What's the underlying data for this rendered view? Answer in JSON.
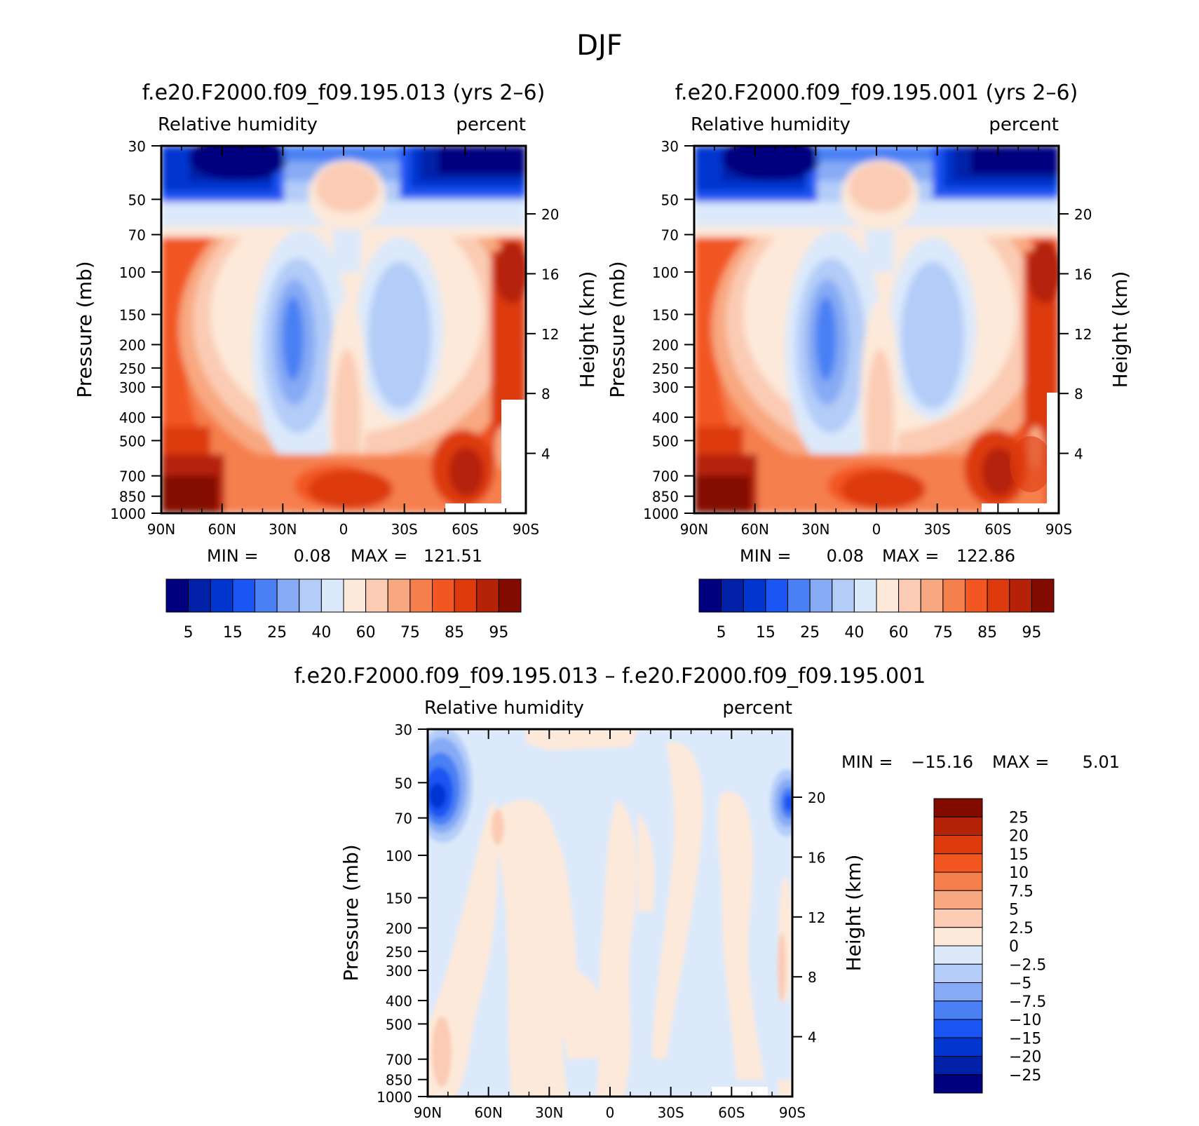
{
  "figure_title": "DJF",
  "stat_labels": {
    "min": "MIN =",
    "max": "MAX ="
  },
  "panels": [
    {
      "title": "f.e20.F2000.f09_f09.195.013 (yrs 2–6)",
      "var_label": "Relative humidity",
      "units_label": "percent",
      "min_value": "0.08",
      "max_value": "121.51"
    },
    {
      "title": "f.e20.F2000.f09_f09.195.001 (yrs 2–6)",
      "var_label": "Relative humidity",
      "units_label": "percent",
      "min_value": "0.08",
      "max_value": "122.86"
    },
    {
      "title": "f.e20.F2000.f09_f09.195.013 – f.e20.F2000.f09_f09.195.001",
      "var_label": "Relative humidity",
      "units_label": "percent",
      "min_value": "−15.16",
      "max_value": "5.01"
    }
  ],
  "axis_labels": {
    "left": "Pressure (mb)",
    "right": "Height (km)"
  },
  "pressure_ticks": [
    "30",
    "50",
    "70",
    "100",
    "150",
    "200",
    "250",
    "300",
    "400",
    "500",
    "700",
    "850",
    "1000"
  ],
  "height_ticks": [
    "20",
    "16",
    "12",
    "8",
    "4"
  ],
  "lat_ticks": [
    "90N",
    "60N",
    "30N",
    "0",
    "30S",
    "60S",
    "90S"
  ],
  "colorbar_rh": {
    "colors": [
      "#00007f",
      "#0020a8",
      "#0035d0",
      "#1a54f2",
      "#4a80f4",
      "#86aaf4",
      "#b3ccf8",
      "#dbe9fb",
      "#fde9d9",
      "#fbcbb4",
      "#f8a880",
      "#f57f4d",
      "#f25722",
      "#dd3a0d",
      "#b52208",
      "#820b00"
    ],
    "labels": [
      "5",
      "15",
      "25",
      "40",
      "60",
      "75",
      "85",
      "95"
    ]
  },
  "colorbar_diff": {
    "colors": [
      "#820b00",
      "#b52208",
      "#dd3a0d",
      "#f25722",
      "#f57f4d",
      "#f8a880",
      "#fbcbb4",
      "#fde9d9",
      "#dbe9fb",
      "#b3ccf8",
      "#86aaf4",
      "#4a80f4",
      "#1a54f2",
      "#0035d0",
      "#0020a8",
      "#00007f"
    ],
    "labels": [
      "25",
      "20",
      "15",
      "10",
      "7.5",
      "5",
      "2.5",
      "0",
      "−2.5",
      "−5",
      "−7.5",
      "−10",
      "−15",
      "−20",
      "−25"
    ]
  },
  "chart_data": [
    {
      "type": "heatmap",
      "title": "f.e20.F2000.f09_f09.195.013 (yrs 2–6)",
      "variable": "Relative humidity",
      "units": "percent",
      "xlabel": "",
      "ylabel": "Pressure (mb)",
      "y2label": "Height (km)",
      "x_range": [
        "90N",
        "90S"
      ],
      "y_range_mb": [
        30,
        1000
      ],
      "contour_levels": [
        5,
        10,
        15,
        20,
        25,
        30,
        35,
        40,
        50,
        60,
        65,
        70,
        75,
        80,
        85,
        90,
        95
      ],
      "min": 0.08,
      "max": 121.51
    },
    {
      "type": "heatmap",
      "title": "f.e20.F2000.f09_f09.195.001 (yrs 2–6)",
      "variable": "Relative humidity",
      "units": "percent",
      "xlabel": "",
      "ylabel": "Pressure (mb)",
      "y2label": "Height (km)",
      "x_range": [
        "90N",
        "90S"
      ],
      "y_range_mb": [
        30,
        1000
      ],
      "contour_levels": [
        5,
        10,
        15,
        20,
        25,
        30,
        35,
        40,
        50,
        60,
        65,
        70,
        75,
        80,
        85,
        90,
        95
      ],
      "min": 0.08,
      "max": 122.86
    },
    {
      "type": "heatmap",
      "title": "f.e20.F2000.f09_f09.195.013 – f.e20.F2000.f09_f09.195.001",
      "variable": "Relative humidity",
      "units": "percent",
      "xlabel": "",
      "ylabel": "Pressure (mb)",
      "y2label": "Height (km)",
      "x_range": [
        "90N",
        "90S"
      ],
      "y_range_mb": [
        30,
        1000
      ],
      "contour_levels": [
        -25,
        -20,
        -15,
        -10,
        -7.5,
        -5,
        -2.5,
        0,
        2.5,
        5,
        7.5,
        10,
        15,
        20,
        25
      ],
      "min": -15.16,
      "max": 5.01
    }
  ]
}
